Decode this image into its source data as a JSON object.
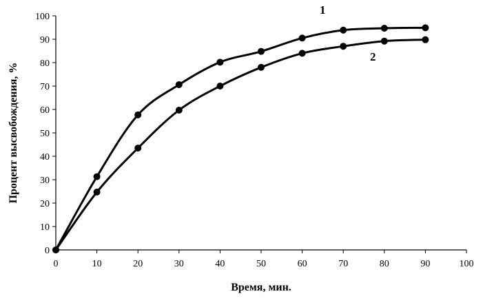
{
  "chart_data": {
    "type": "line",
    "title": "",
    "xlabel": "Время, мин.",
    "ylabel": "Процент высвобождения, %",
    "xlim": [
      0,
      100
    ],
    "ylim": [
      0,
      100
    ],
    "xticks": [
      0,
      10,
      20,
      30,
      40,
      50,
      60,
      70,
      80,
      90,
      100
    ],
    "yticks": [
      0,
      10,
      20,
      30,
      40,
      50,
      60,
      70,
      80,
      90,
      100
    ],
    "grid": false,
    "legend": "none",
    "colors": {
      "series": "#000000"
    },
    "series": [
      {
        "name": "1",
        "x": [
          0,
          10,
          20,
          30,
          40,
          50,
          60,
          70,
          80,
          90
        ],
        "y": [
          0,
          31.3,
          57.7,
          70.6,
          80.2,
          84.8,
          90.5,
          93.9,
          94.7,
          94.9
        ]
      },
      {
        "name": "2",
        "x": [
          0,
          10,
          20,
          30,
          40,
          50,
          60,
          70,
          80,
          90
        ],
        "y": [
          0,
          24.7,
          43.5,
          59.7,
          70,
          78,
          84,
          87,
          89.2,
          89.8
        ]
      }
    ]
  }
}
